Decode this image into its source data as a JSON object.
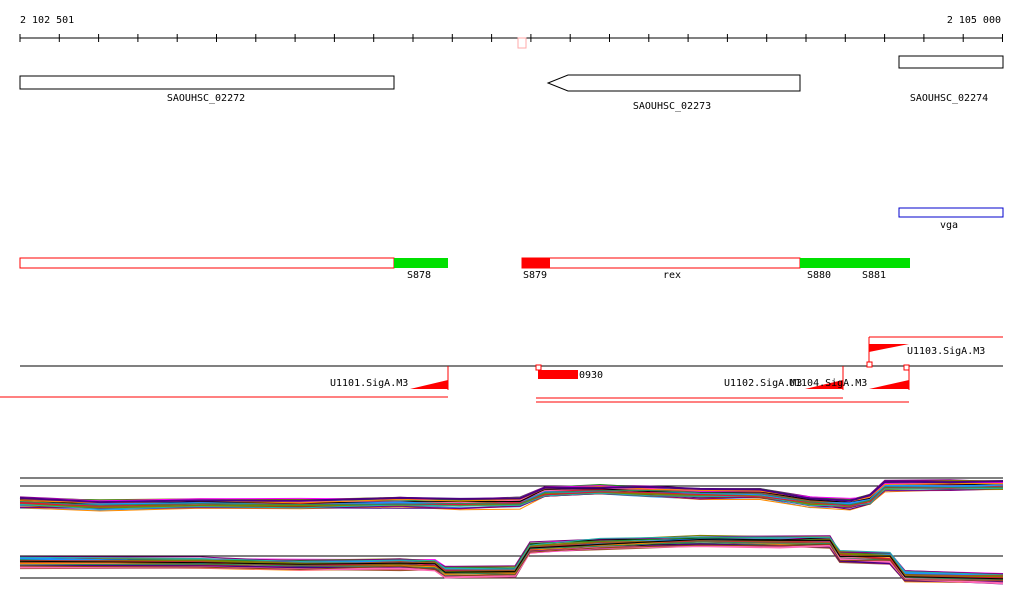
{
  "ruler": {
    "start_label": "2 102 501",
    "end_label": "2 105 000"
  },
  "genes": [
    {
      "id": "SAOUHSC_02272"
    },
    {
      "id": "SAOUHSC_02273"
    },
    {
      "id": "SAOUHSC_02274"
    }
  ],
  "features": {
    "vga": "vga",
    "rex": "rex",
    "segments": [
      "S878",
      "S879",
      "S880",
      "S881"
    ]
  },
  "transcripts": {
    "u1101": "U1101.SigA.M3",
    "u1102": "U1102.SigA.M3",
    "u1103": "U1103.SigA.M3",
    "u1104": "U1104.SigA.M3",
    "d930": "0930"
  },
  "colors": {
    "feature_red": "#ff0000",
    "feature_green": "#00e000",
    "outline_blue": "#0000cc",
    "black": "#000000"
  },
  "expression_series_colors": [
    "#000000",
    "#8b4513",
    "#228b22",
    "#ff00ff",
    "#1e90ff",
    "#ff8c00",
    "#800080",
    "#808000",
    "#20b2aa",
    "#dc143c",
    "#4b0082",
    "#2e8b57",
    "#a0522d",
    "#ff69b4"
  ]
}
